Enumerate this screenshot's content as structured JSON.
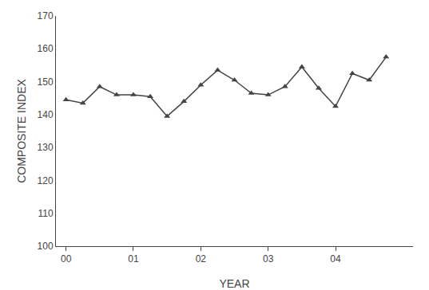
{
  "chart_data": {
    "type": "line",
    "x": [
      2000.0,
      2000.25,
      2000.5,
      2000.75,
      2001.0,
      2001.25,
      2001.5,
      2001.75,
      2002.0,
      2002.25,
      2002.5,
      2002.75,
      2003.0,
      2003.25,
      2003.5,
      2003.75,
      2004.0,
      2004.25,
      2004.5,
      2004.75
    ],
    "values": [
      144.5,
      143.5,
      148.5,
      146.0,
      146.0,
      145.5,
      139.5,
      144.0,
      149.0,
      153.5,
      150.5,
      146.5,
      146.0,
      148.5,
      154.5,
      148.0,
      142.5,
      152.5,
      150.5,
      157.5
    ],
    "x_label": "YEAR",
    "y_label": "COMPOSITE INDEX",
    "xlim": [
      1999.85,
      2005.15
    ],
    "ylim": [
      100,
      170
    ],
    "xticks": [
      {
        "value": 2000.0,
        "label": "00"
      },
      {
        "value": 2001.0,
        "label": "01"
      },
      {
        "value": 2002.0,
        "label": "02"
      },
      {
        "value": 2003.0,
        "label": "03"
      },
      {
        "value": 2004.0,
        "label": "04"
      }
    ],
    "yticks": [
      100,
      110,
      120,
      130,
      140,
      150,
      160,
      170
    ],
    "color": "#444444",
    "marker": "triangle",
    "grid": false
  }
}
